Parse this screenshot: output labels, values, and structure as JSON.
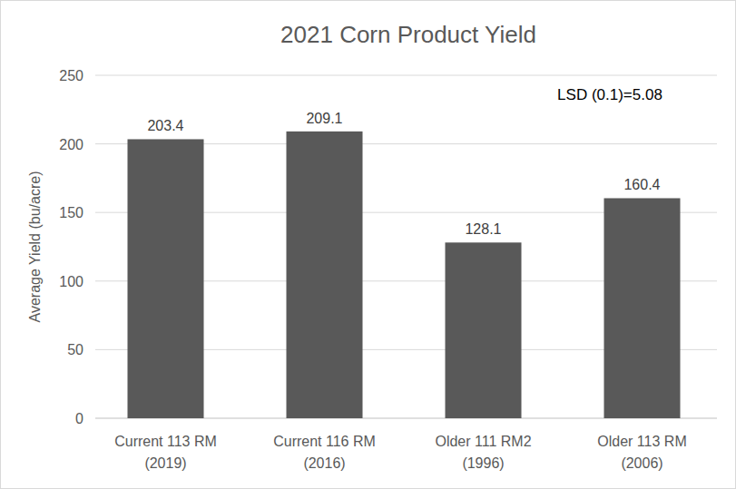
{
  "chart_data": {
    "type": "bar",
    "title": "2021 Corn Product Yield",
    "y_label": "Average Yield (bu/acre)",
    "annotation": "LSD (0.1)=5.08",
    "categories": [
      "Current 113 RM\n(2019)",
      "Current 116 RM\n(2016)",
      "Older 111 RM2\n(1996)",
      "Older 113 RM\n(2006)"
    ],
    "values": [
      203.4,
      209.1,
      128.1,
      160.4
    ],
    "color": "#595959",
    "ylim": [
      0,
      250
    ],
    "yticks": [
      0,
      50,
      100,
      150,
      200,
      250
    ],
    "grid": true,
    "data_labels": true
  }
}
